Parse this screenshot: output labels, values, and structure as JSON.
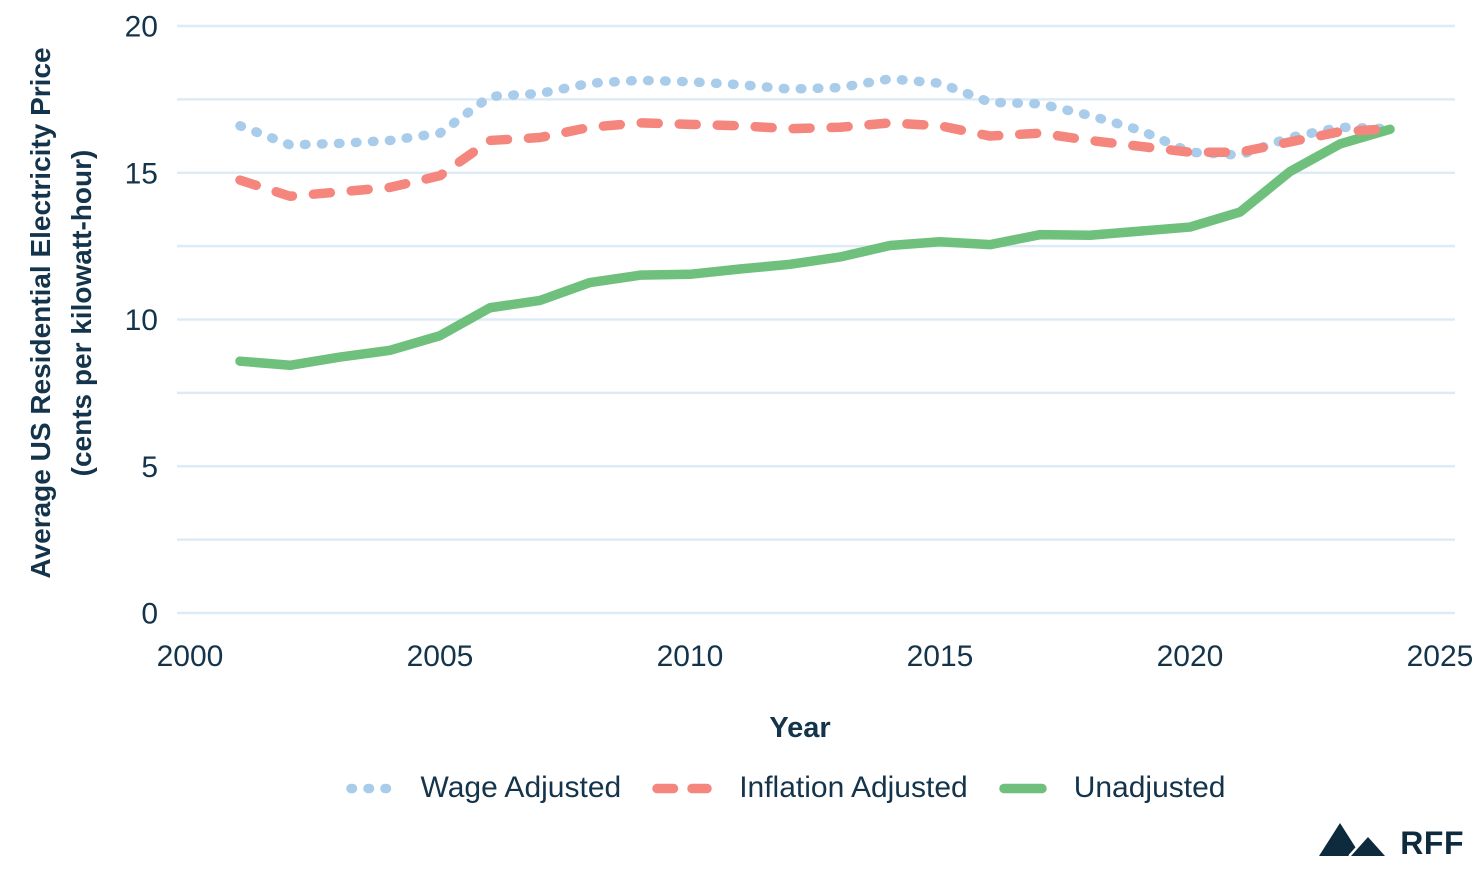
{
  "y_axis": {
    "title_line1": "Average US Residential Electricity Price",
    "title_line2": "(cents per kilowatt-hour)",
    "ticks": [
      0,
      5,
      10,
      15,
      20
    ]
  },
  "x_axis": {
    "title": "Year",
    "ticks": [
      2000,
      2005,
      2010,
      2015,
      2020,
      2025
    ]
  },
  "legend": {
    "items": [
      {
        "label": "Wage Adjusted",
        "color": "#a8cce9",
        "line_style": "dotted"
      },
      {
        "label": "Inflation Adjusted",
        "color": "#f4867e",
        "line_style": "dashed"
      },
      {
        "label": "Unadjusted",
        "color": "#70c07d",
        "line_style": "solid"
      }
    ]
  },
  "logo": {
    "text": "RFF",
    "icon": "two-mountain-triangles",
    "color": "#0d2b3d"
  },
  "colors": {
    "text": "#14344b",
    "gridline": "#ddebf7",
    "background": "#ffffff",
    "wage_adjusted": "#a8cce9",
    "inflation_adjusted": "#f4867e",
    "unadjusted": "#70c07d"
  },
  "chart_data": {
    "type": "line",
    "title": "",
    "xlabel": "Year",
    "ylabel": "Average US Residential Electricity Price (cents per kilowatt-hour)",
    "ylim": [
      0,
      20
    ],
    "xlim": [
      2000,
      2025.5
    ],
    "y_gridline_step": 2.5,
    "grid": "horizontal-only",
    "legend_position": "bottom",
    "x": [
      2001,
      2002,
      2003,
      2004,
      2005,
      2006,
      2007,
      2008,
      2009,
      2010,
      2011,
      2012,
      2013,
      2014,
      2015,
      2016,
      2017,
      2018,
      2019,
      2020,
      2021,
      2022,
      2023,
      2024
    ],
    "series": [
      {
        "name": "Wage Adjusted",
        "color": "#a8cce9",
        "line_style": "dotted",
        "values": [
          16.6,
          15.95,
          16.0,
          16.1,
          16.35,
          17.6,
          17.7,
          18.05,
          18.15,
          18.1,
          18.0,
          17.85,
          17.9,
          18.2,
          18.05,
          17.4,
          17.35,
          16.95,
          16.45,
          15.7,
          15.6,
          16.2,
          16.55,
          16.5
        ]
      },
      {
        "name": "Inflation Adjusted",
        "color": "#f4867e",
        "line_style": "dashed",
        "values": [
          14.75,
          14.2,
          14.35,
          14.5,
          14.9,
          16.1,
          16.2,
          16.55,
          16.7,
          16.65,
          16.6,
          16.5,
          16.55,
          16.7,
          16.6,
          16.25,
          16.35,
          16.1,
          15.9,
          15.7,
          15.7,
          16.05,
          16.4,
          16.5
        ]
      },
      {
        "name": "Unadjusted",
        "color": "#70c07d",
        "line_style": "solid",
        "values": [
          8.58,
          8.44,
          8.72,
          8.95,
          9.45,
          10.4,
          10.65,
          11.26,
          11.51,
          11.54,
          11.72,
          11.88,
          12.13,
          12.52,
          12.65,
          12.55,
          12.89,
          12.87,
          13.01,
          13.15,
          13.66,
          15.04,
          15.98,
          16.48
        ]
      }
    ]
  }
}
